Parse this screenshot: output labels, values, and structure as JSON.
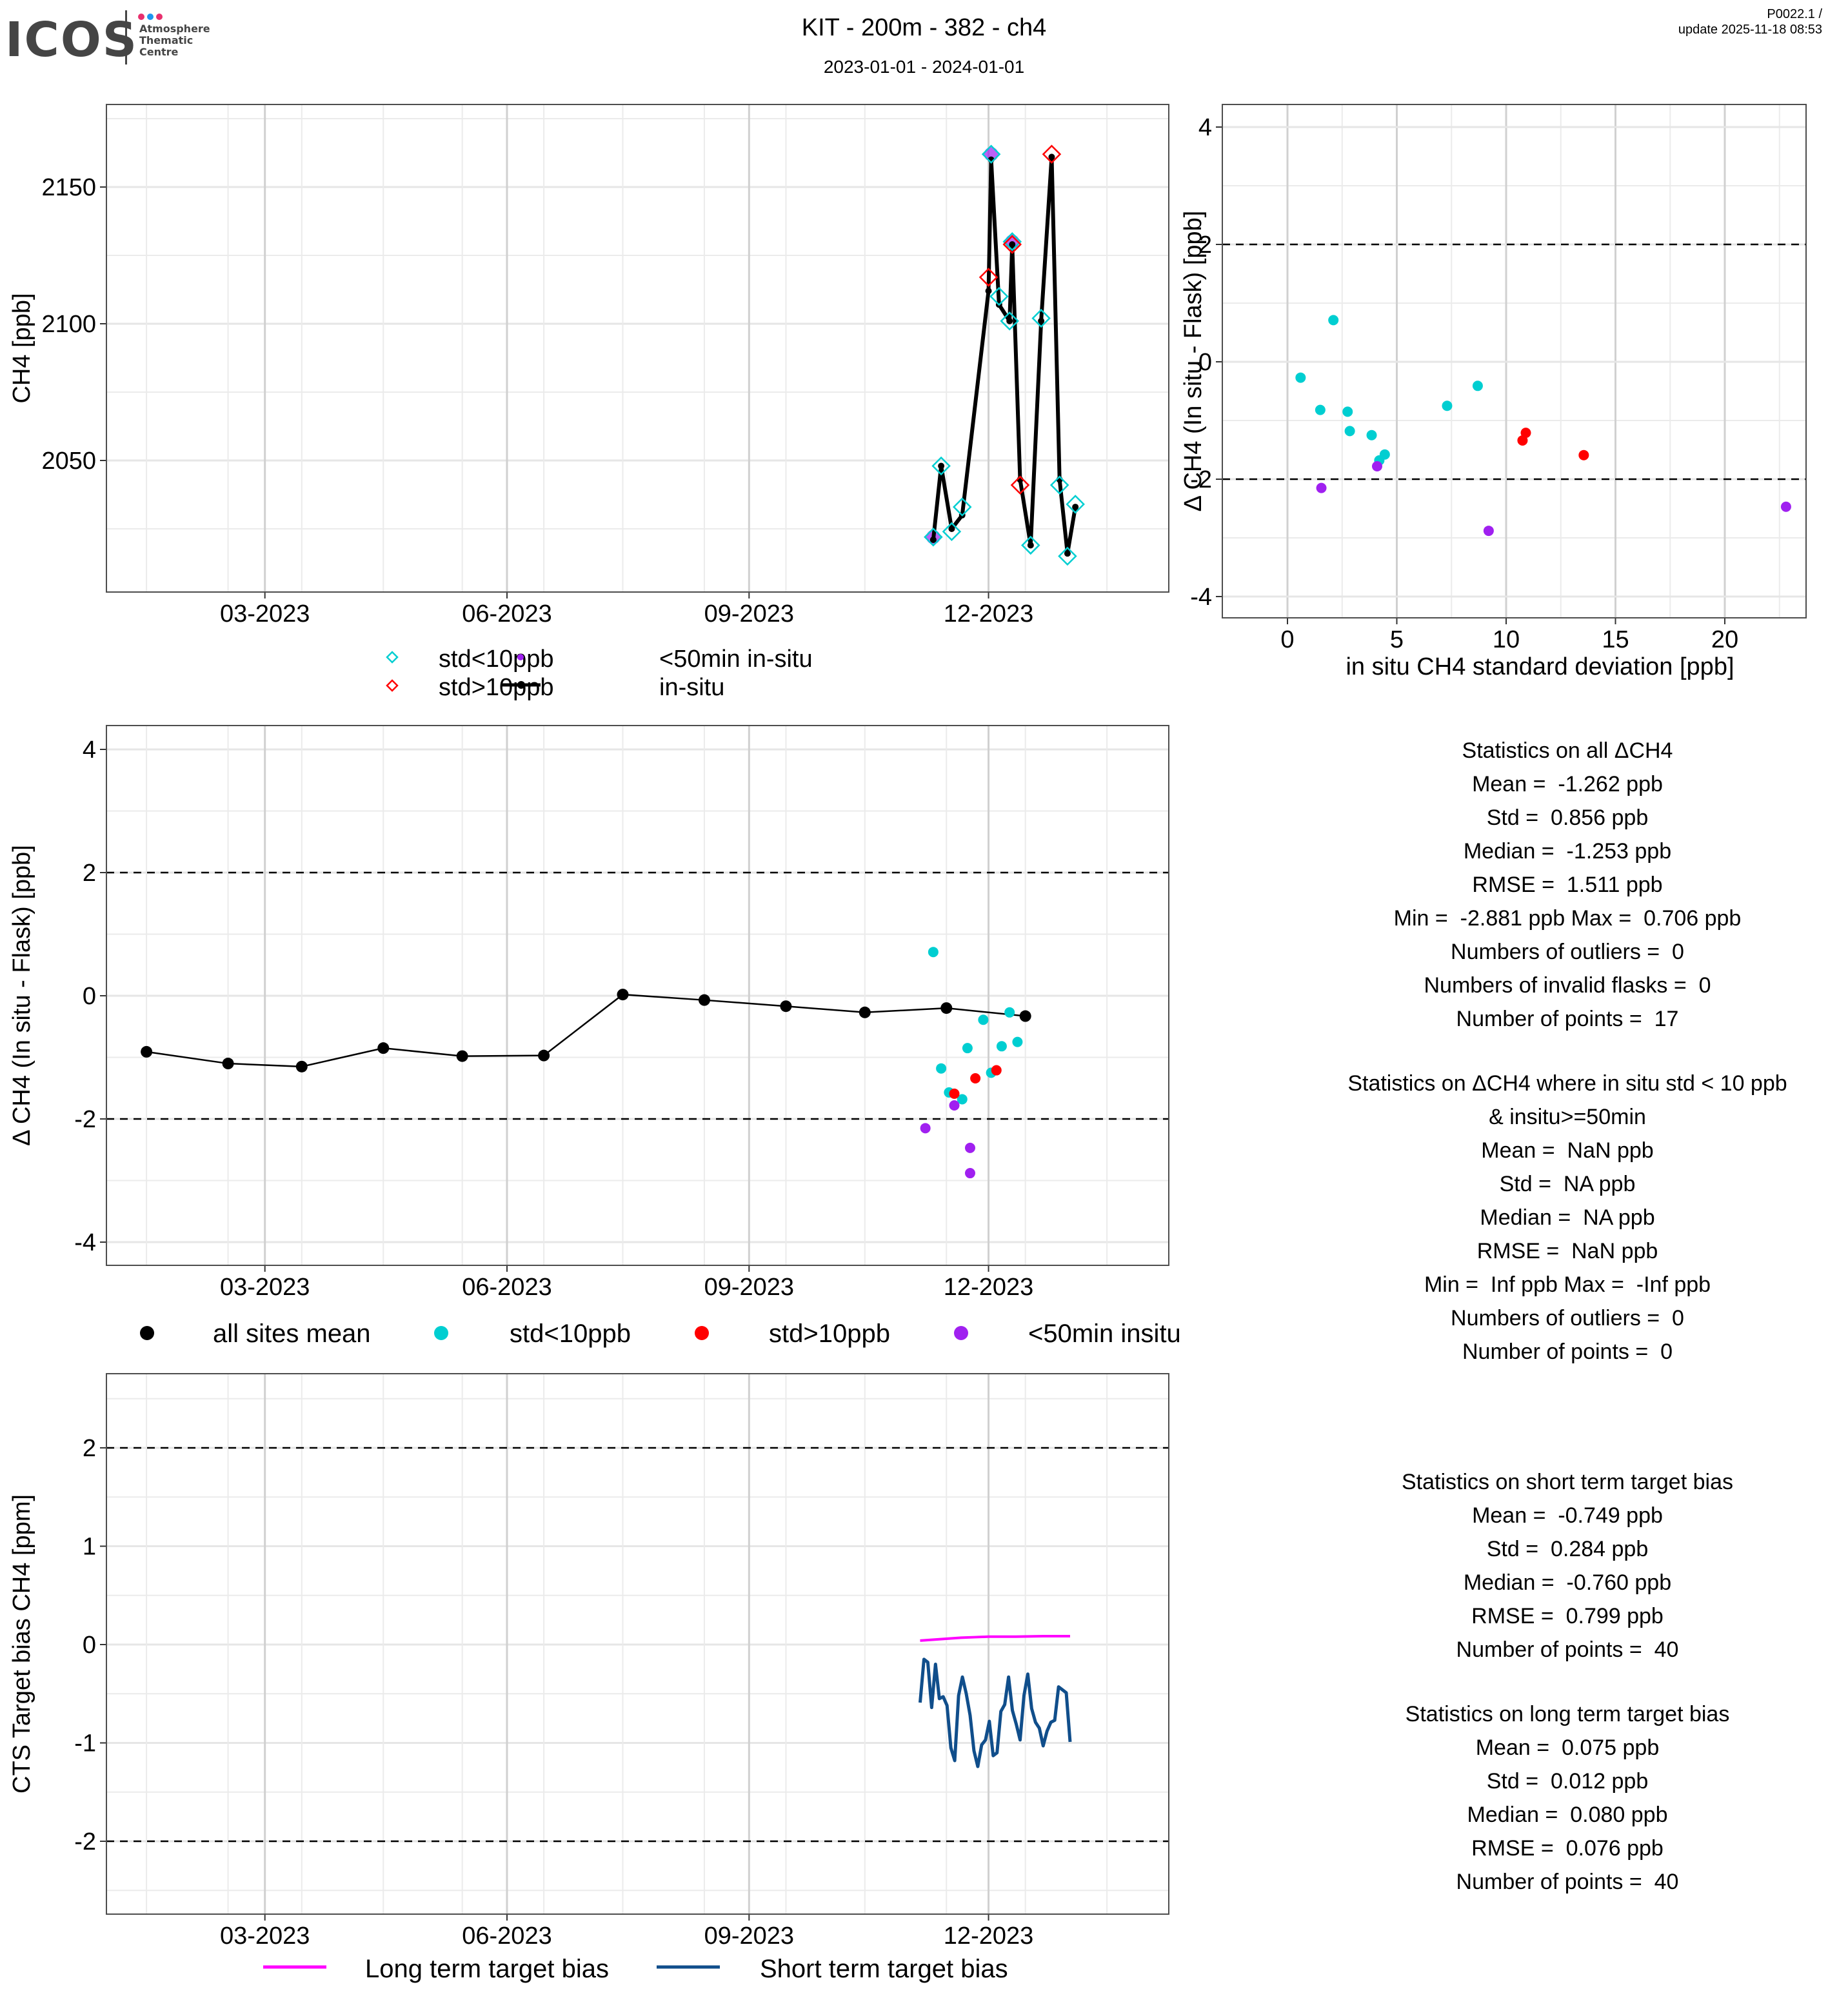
{
  "header": {
    "logo": {
      "wordmark": "ICOS",
      "lines": [
        "Atmosphere",
        "Thematic",
        "Centre"
      ],
      "dot_colors": [
        "#e8306e",
        "#1e96f0",
        "#e8306e"
      ]
    },
    "title": "KIT - 200m - 382 - ch4",
    "subtitle": "2023-01-01 - 2024-01-01",
    "version": "P0022.1 /",
    "update": "update  2025-11-18 08:53"
  },
  "colors": {
    "std_lt_10": "#00CED1",
    "std_gt_10": "#FF0000",
    "lt_50min": "#A020F0",
    "in_situ": "#000000",
    "long_term": "#FF00FF",
    "short_term": "#104E8B"
  },
  "chart_data": [
    {
      "id": "ch4-timeseries",
      "type": "line",
      "title": "",
      "xlabel": "",
      "ylabel": "CH4 [ppb]",
      "x_ticks": [
        "03-2023",
        "06-2023",
        "09-2023",
        "12-2023"
      ],
      "y_ticks": [
        2050,
        2100,
        2150
      ],
      "ylim": [
        2003,
        2177
      ],
      "xlim": [
        "2022-12-25",
        "2024-01-05"
      ],
      "grid": true,
      "legend_position": "bottom",
      "legend": [
        {
          "label": "std<10ppb",
          "marker": "open-diamond",
          "color": "#00CED1"
        },
        {
          "label": "std>10ppb",
          "marker": "open-diamond",
          "color": "#FF0000"
        },
        {
          "label": "<50min in-situ",
          "marker": "dot",
          "color": "#A020F0"
        },
        {
          "label": "in-situ",
          "marker": "line-dot",
          "color": "#000000"
        }
      ],
      "series": [
        {
          "name": "in-situ",
          "points": [
            {
              "date": "2023-11-10",
              "value": 2021
            },
            {
              "date": "2023-11-13",
              "value": 2048
            },
            {
              "date": "2023-11-17",
              "value": 2025
            },
            {
              "date": "2023-11-21",
              "value": 2030
            },
            {
              "date": "2023-12-01",
              "value": 2112
            },
            {
              "date": "2023-12-02",
              "value": 2160
            },
            {
              "date": "2023-12-05",
              "value": 2107
            },
            {
              "date": "2023-12-09",
              "value": 2101
            },
            {
              "date": "2023-12-10",
              "value": 2129
            },
            {
              "date": "2023-12-13",
              "value": 2043
            },
            {
              "date": "2023-12-17",
              "value": 2019
            },
            {
              "date": "2023-12-21",
              "value": 2101
            },
            {
              "date": "2023-12-25",
              "value": 2161
            },
            {
              "date": "2023-12-28",
              "value": 2043
            },
            {
              "date": "2023-12-31",
              "value": 2016
            },
            {
              "date": "2024-01-03",
              "value": 2033
            }
          ]
        },
        {
          "name": "std<10ppb",
          "points": [
            {
              "date": "2023-11-10",
              "value": 2022
            },
            {
              "date": "2023-11-13",
              "value": 2048
            },
            {
              "date": "2023-11-17",
              "value": 2024
            },
            {
              "date": "2023-11-21",
              "value": 2033
            },
            {
              "date": "2023-12-02",
              "value": 2162
            },
            {
              "date": "2023-12-05",
              "value": 2110
            },
            {
              "date": "2023-12-09",
              "value": 2101
            },
            {
              "date": "2023-12-10",
              "value": 2130
            },
            {
              "date": "2023-12-17",
              "value": 2019
            },
            {
              "date": "2023-12-21",
              "value": 2102
            },
            {
              "date": "2023-12-28",
              "value": 2041
            },
            {
              "date": "2023-12-31",
              "value": 2015
            },
            {
              "date": "2024-01-03",
              "value": 2034
            }
          ]
        },
        {
          "name": "std>10ppb",
          "points": [
            {
              "date": "2023-12-01",
              "value": 2117
            },
            {
              "date": "2023-12-10",
              "value": 2129
            },
            {
              "date": "2023-12-13",
              "value": 2041
            },
            {
              "date": "2023-12-25",
              "value": 2162
            }
          ]
        },
        {
          "name": "<50min in-situ",
          "points": [
            {
              "date": "2023-11-10",
              "value": 2022
            },
            {
              "date": "2023-12-02",
              "value": 2162
            },
            {
              "date": "2023-12-10",
              "value": 2130
            }
          ]
        }
      ]
    },
    {
      "id": "delta-vs-std",
      "type": "scatter",
      "title": "",
      "xlabel": "in situ CH4 standard deviation [ppb]",
      "ylabel": "Δ CH4 (In situ - Flask) [ppb]",
      "x_ticks": [
        0,
        5,
        10,
        15,
        20
      ],
      "y_ticks": [
        -4,
        -2,
        0,
        2,
        4
      ],
      "xlim": [
        -0.6,
        23.8
      ],
      "ylim": [
        -4.4,
        4.4
      ],
      "grid": true,
      "reference_lines": [
        2,
        -2
      ],
      "series": [
        {
          "name": "std<10ppb",
          "points": [
            [
              0.6,
              -0.27
            ],
            [
              1.5,
              -0.82
            ],
            [
              2.1,
              0.71
            ],
            [
              2.75,
              -0.85
            ],
            [
              2.85,
              -1.18
            ],
            [
              3.85,
              -1.25
            ],
            [
              4.2,
              -1.68
            ],
            [
              4.45,
              -1.58
            ],
            [
              7.3,
              -0.75
            ],
            [
              8.7,
              -0.41
            ]
          ]
        },
        {
          "name": "std>10ppb",
          "points": [
            [
              10.75,
              -1.34
            ],
            [
              10.9,
              -1.21
            ],
            [
              13.55,
              -1.59
            ]
          ]
        },
        {
          "name": "<50min in-situ",
          "points": [
            [
              1.55,
              -2.15
            ],
            [
              4.1,
              -1.78
            ],
            [
              9.2,
              -2.88
            ],
            [
              22.8,
              -2.47
            ]
          ]
        }
      ]
    },
    {
      "id": "delta-timeseries",
      "type": "scatter",
      "title": "",
      "xlabel": "",
      "ylabel": "Δ CH4 (In situ - Flask) [ppb]",
      "x_ticks": [
        "03-2023",
        "06-2023",
        "09-2023",
        "12-2023"
      ],
      "y_ticks": [
        -4,
        -2,
        0,
        2,
        4
      ],
      "ylim": [
        -4.4,
        4.4
      ],
      "xlim": [
        "2022-12-25",
        "2024-01-05"
      ],
      "grid": true,
      "reference_lines": [
        2,
        -2
      ],
      "legend_position": "bottom",
      "legend": [
        {
          "label": "all sites mean",
          "color": "#000000"
        },
        {
          "label": "std<10ppb",
          "color": "#00CED1"
        },
        {
          "label": "std>10ppb",
          "color": "#FF0000"
        },
        {
          "label": "<50min insitu",
          "color": "#A020F0"
        }
      ],
      "series": [
        {
          "name": "all sites mean",
          "type": "line",
          "points": [
            {
              "date": "2023-01-15",
              "value": -0.91
            },
            {
              "date": "2023-02-15",
              "value": -1.1
            },
            {
              "date": "2023-03-15",
              "value": -1.15
            },
            {
              "date": "2023-04-15",
              "value": -0.85
            },
            {
              "date": "2023-05-15",
              "value": -0.98
            },
            {
              "date": "2023-06-15",
              "value": -0.97
            },
            {
              "date": "2023-07-15",
              "value": 0.02
            },
            {
              "date": "2023-08-15",
              "value": -0.07
            },
            {
              "date": "2023-09-15",
              "value": -0.17
            },
            {
              "date": "2023-10-15",
              "value": -0.27
            },
            {
              "date": "2023-11-15",
              "value": -0.2
            },
            {
              "date": "2023-12-15",
              "value": -0.33
            }
          ]
        },
        {
          "name": "std<10ppb",
          "points": [
            {
              "date": "2023-11-10",
              "value": 0.71
            },
            {
              "date": "2023-11-13",
              "value": -1.18
            },
            {
              "date": "2023-11-16",
              "value": -1.57
            },
            {
              "date": "2023-11-21",
              "value": -1.68
            },
            {
              "date": "2023-11-23",
              "value": -0.85
            },
            {
              "date": "2023-11-29",
              "value": -0.39
            },
            {
              "date": "2023-12-02",
              "value": -1.25
            },
            {
              "date": "2023-12-06",
              "value": -0.82
            },
            {
              "date": "2023-12-09",
              "value": -0.27
            },
            {
              "date": "2023-12-12",
              "value": -0.75
            }
          ]
        },
        {
          "name": "std>10ppb",
          "points": [
            {
              "date": "2023-11-18",
              "value": -1.59
            },
            {
              "date": "2023-11-26",
              "value": -1.34
            },
            {
              "date": "2023-12-04",
              "value": -1.21
            }
          ]
        },
        {
          "name": "<50min insitu",
          "points": [
            {
              "date": "2023-11-07",
              "value": -2.15
            },
            {
              "date": "2023-11-18",
              "value": -1.78
            },
            {
              "date": "2023-11-24",
              "value": -2.47
            },
            {
              "date": "2023-11-24",
              "value": -2.88
            }
          ]
        }
      ]
    },
    {
      "id": "target-bias",
      "type": "line",
      "title": "",
      "xlabel": "",
      "ylabel": "CTS Target bias CH4 [ppm]",
      "x_ticks": [
        "03-2023",
        "06-2023",
        "09-2023",
        "12-2023"
      ],
      "y_ticks": [
        -2,
        -1,
        0,
        1,
        2
      ],
      "ylim": [
        -2.7,
        2.7
      ],
      "xlim": [
        "2022-12-25",
        "2024-01-05"
      ],
      "grid": true,
      "reference_lines": [
        2,
        -2
      ],
      "legend_position": "bottom",
      "legend": [
        {
          "label": "Long term target bias",
          "color": "#FF00FF"
        },
        {
          "label": "Short term target bias",
          "color": "#104E8B"
        }
      ],
      "series": [
        {
          "name": "Long term target bias",
          "start": "2023-11-05",
          "end": "2024-01-01",
          "values": [
            0.04,
            0.05,
            0.06,
            0.07,
            0.075,
            0.08,
            0.08,
            0.08,
            0.083,
            0.085,
            0.085,
            0.085
          ]
        },
        {
          "name": "Short term target bias",
          "start": "2023-11-05",
          "end": "2024-01-01",
          "values": [
            -0.59,
            -0.15,
            -0.18,
            -0.64,
            -0.2,
            -0.55,
            -0.53,
            -0.62,
            -1.05,
            -1.18,
            -0.52,
            -0.33,
            -0.5,
            -0.72,
            -1.08,
            -1.24,
            -1.02,
            -0.97,
            -0.78,
            -1.13,
            -1.1,
            -0.68,
            -0.61,
            -0.33,
            -0.67,
            -0.81,
            -0.97,
            -0.52,
            -0.3,
            -0.65,
            -0.79,
            -0.85,
            -1.03,
            -0.88,
            -0.79,
            -0.77,
            -0.43,
            -0.46,
            -0.49,
            -0.99
          ]
        }
      ]
    }
  ],
  "stats": {
    "all_delta": {
      "lines": [
        "Statistics on all ΔCH4",
        "Mean =  -1.262 ppb",
        "Std =  0.856 ppb",
        "Median =  -1.253 ppb",
        "RMSE =  1.511 ppb",
        "Min =  -2.881 ppb Max =  0.706 ppb",
        "Numbers of outliers =  0",
        "Numbers of invalid flasks =  0",
        "Number of points =  17"
      ]
    },
    "filtered_delta": {
      "lines": [
        "Statistics on ΔCH4 where in situ std < 10 ppb",
        "& insitu>=50min",
        "Mean =  NaN ppb",
        "Std =  NA ppb",
        "Median =  NA ppb",
        "RMSE =  NaN ppb",
        "Min =  Inf ppb Max =  -Inf ppb",
        "Numbers of outliers =  0",
        "Number of points =  0"
      ]
    },
    "short_term": {
      "lines": [
        "Statistics on short term target bias",
        "Mean =  -0.749 ppb",
        "Std =  0.284 ppb",
        "Median =  -0.760 ppb",
        "RMSE =  0.799 ppb",
        "Number of points =  40"
      ]
    },
    "long_term": {
      "lines": [
        "Statistics on long term target bias",
        "Mean =  0.075 ppb",
        "Std =  0.012 ppb",
        "Median =  0.080 ppb",
        "RMSE =  0.076 ppb",
        "Number of points =  40"
      ]
    }
  }
}
